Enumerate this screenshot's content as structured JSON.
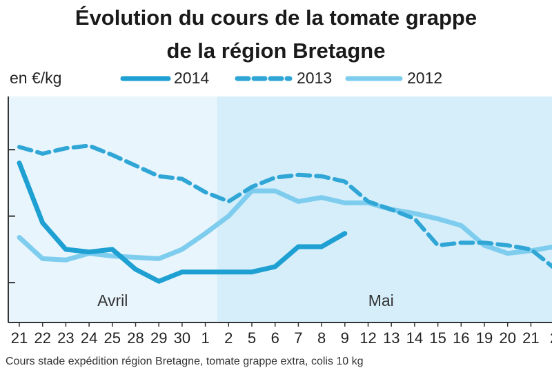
{
  "title_lines": [
    "Évolution du cours de la tomate grappe",
    "de la région Bretagne"
  ],
  "unit_label": "en €/kg",
  "footnote": "Cours stade expédition région Bretagne, tomate grappe extra, colis 10 kg",
  "colors": {
    "series_2014": "#1ea0d3",
    "series_2013": "#2fa6d6",
    "series_2012": "#7ecdef",
    "region_avril": "#e8f5fc",
    "region_mai": "#d6eef9",
    "axis": "#333333"
  },
  "chart_data": {
    "type": "line",
    "title": "Évolution du cours de la tomate grappe de la région Bretagne",
    "ylabel": "en €/kg",
    "xlabel": "",
    "grid": false,
    "legend_position": "top",
    "months": [
      {
        "label": "Avril",
        "from": 0,
        "to": 8
      },
      {
        "label": "Mai",
        "from": 9,
        "to": 23
      }
    ],
    "categories": [
      "21",
      "22",
      "23",
      "24",
      "25",
      "28",
      "29",
      "30",
      "1",
      "2",
      "5",
      "6",
      "7",
      "8",
      "9",
      "12",
      "13",
      "14",
      "15",
      "16",
      "19",
      "20",
      "21",
      "2"
    ],
    "ylim": [
      0.5,
      2.2
    ],
    "y_ticks": [
      0.8,
      1.3,
      1.8
    ],
    "series": [
      {
        "name": "2014",
        "color": "#1ea0d3",
        "style": "solid",
        "values": [
          1.7,
          1.25,
          1.05,
          1.03,
          1.05,
          0.9,
          0.81,
          0.88,
          0.88,
          0.88,
          0.88,
          0.92,
          1.07,
          1.07,
          1.17,
          null,
          null,
          null,
          null,
          null,
          null,
          null,
          null,
          null
        ]
      },
      {
        "name": "2013",
        "color": "#2fa6d6",
        "style": "dashed",
        "values": [
          1.82,
          1.77,
          1.81,
          1.83,
          1.76,
          1.68,
          1.6,
          1.58,
          1.48,
          1.41,
          1.52,
          1.59,
          1.61,
          1.6,
          1.56,
          1.41,
          1.35,
          1.28,
          1.08,
          1.1,
          1.1,
          1.08,
          1.05,
          0.91
        ]
      },
      {
        "name": "2012",
        "color": "#7ecdef",
        "style": "solid",
        "values": [
          1.14,
          0.98,
          0.97,
          1.02,
          1.0,
          0.99,
          0.98,
          1.05,
          1.17,
          1.3,
          1.49,
          1.49,
          1.41,
          1.44,
          1.4,
          1.4,
          1.35,
          1.32,
          1.28,
          1.23,
          1.08,
          1.02,
          1.04,
          1.07
        ]
      }
    ]
  }
}
